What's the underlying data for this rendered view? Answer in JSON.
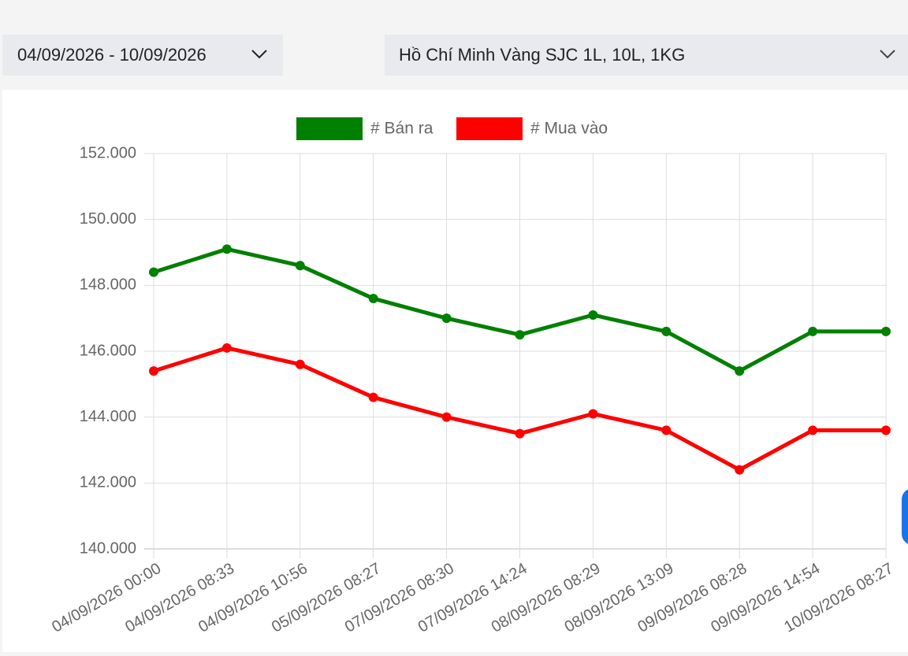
{
  "filters": {
    "date_range": "04/09/2026 - 10/09/2026",
    "product": "Hồ Chí Minh Vàng SJC 1L, 10L, 1KG"
  },
  "chart_data": {
    "type": "line",
    "categories": [
      "04/09/2026 00:00",
      "04/09/2026 08:33",
      "04/09/2026 10:56",
      "05/09/2026 08:27",
      "07/09/2026 08:30",
      "07/09/2026 14:24",
      "08/09/2026 08:29",
      "08/09/2026 13:09",
      "09/09/2026 08:28",
      "09/09/2026 14:54",
      "10/09/2026 08:27"
    ],
    "series": [
      {
        "name": "# Bán ra",
        "color": "#008000",
        "values": [
          148400,
          149100,
          148600,
          147600,
          147000,
          146500,
          147100,
          146600,
          145400,
          146600,
          146600
        ]
      },
      {
        "name": "# Mua vào",
        "color": "#ff0000",
        "values": [
          145400,
          146100,
          145600,
          144600,
          144000,
          143500,
          144100,
          143600,
          142400,
          143600,
          143600
        ]
      }
    ],
    "ylim": [
      140000,
      152000
    ],
    "yticks": [
      {
        "value": 140000,
        "label": "140.000"
      },
      {
        "value": 142000,
        "label": "142.000"
      },
      {
        "value": 144000,
        "label": "144.000"
      },
      {
        "value": 146000,
        "label": "146.000"
      },
      {
        "value": 148000,
        "label": "148.000"
      },
      {
        "value": 150000,
        "label": "150.000"
      },
      {
        "value": 152000,
        "label": "152.000"
      }
    ],
    "grid": true,
    "legend": "top"
  }
}
